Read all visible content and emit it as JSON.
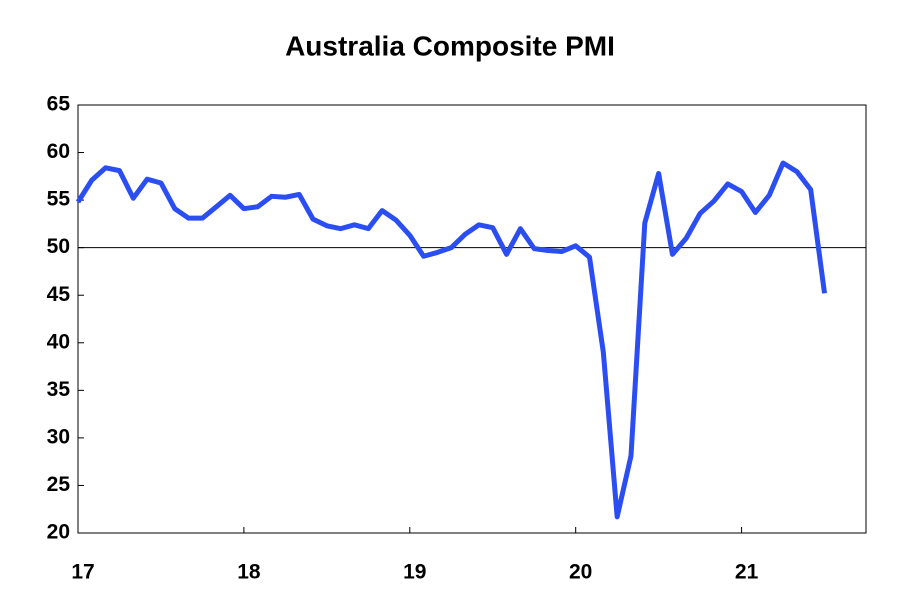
{
  "chart_data": {
    "type": "line",
    "title": "Australia Composite PMI",
    "categories": [
      "17",
      null,
      null,
      null,
      null,
      null,
      null,
      null,
      null,
      null,
      null,
      null,
      "18",
      null,
      null,
      null,
      null,
      null,
      null,
      null,
      null,
      null,
      null,
      null,
      "19",
      null,
      null,
      null,
      null,
      null,
      null,
      null,
      null,
      null,
      null,
      null,
      "20",
      null,
      null,
      null,
      null,
      null,
      null,
      null,
      null,
      null,
      null,
      null,
      "21",
      null,
      null,
      null,
      null,
      null,
      null
    ],
    "series": [
      {
        "name": "Composite PMI",
        "color": "#2b4ef2",
        "values": [
          54.8,
          57.1,
          58.4,
          58.1,
          55.2,
          57.2,
          56.8,
          54.1,
          53.1,
          53.1,
          54.3,
          55.5,
          54.1,
          54.3,
          55.4,
          55.3,
          55.6,
          53.0,
          52.3,
          52.0,
          52.4,
          52.0,
          53.9,
          52.9,
          51.3,
          49.1,
          49.5,
          50.0,
          51.4,
          52.4,
          52.1,
          49.3,
          52.0,
          49.9,
          49.7,
          49.6,
          50.2,
          49.0,
          39.0,
          21.7,
          28.1,
          52.6,
          57.8,
          49.3,
          51.0,
          53.6,
          54.9,
          56.7,
          55.9,
          53.7,
          55.5,
          58.9,
          58.0,
          56.1,
          45.2
        ]
      }
    ],
    "ylim": [
      20,
      65
    ],
    "yticks": [
      20,
      25,
      30,
      35,
      40,
      45,
      50,
      55,
      60,
      65
    ],
    "hline": 50,
    "grid": false
  }
}
